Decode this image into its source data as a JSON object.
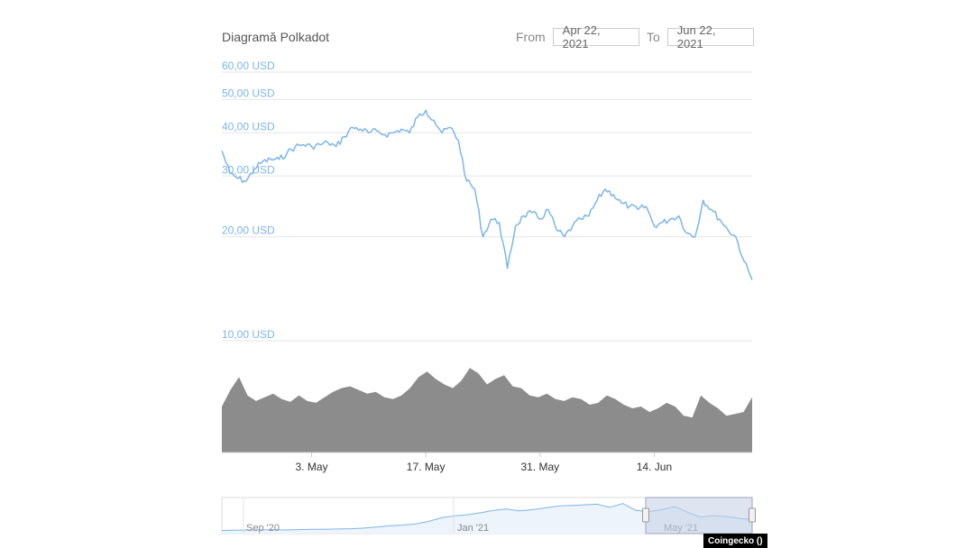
{
  "header": {
    "title": "Diagramă Polkadot",
    "from_label": "From",
    "from_value": "Apr 22, 2021",
    "to_label": "To",
    "to_value": "Jun 22, 2021"
  },
  "credit": "Coingecko ()",
  "colors": {
    "price_line": "#7cb5ec",
    "volume_fill": "#8c8c8c",
    "grid": "#e6e6e6",
    "navigator_mask": "#c3cfe6"
  },
  "chart_data": [
    {
      "type": "line",
      "title": "Diagramă Polkadot",
      "ylabel": "",
      "xlabel": "",
      "y_scale": "log",
      "ylim": [
        10,
        60
      ],
      "y_ticks": [
        10,
        20,
        30,
        40,
        50,
        60
      ],
      "y_tick_labels": [
        "10,00 USD",
        "20,00 USD",
        "30,00 USD",
        "40,00 USD",
        "50,00 USD",
        "60,00 USD"
      ],
      "x_tick_labels": [
        {
          "date": "2021-05-03",
          "label": "3. May"
        },
        {
          "date": "2021-05-17",
          "label": "17. May"
        },
        {
          "date": "2021-05-31",
          "label": "31. May"
        },
        {
          "date": "2021-06-14",
          "label": "14. Jun"
        }
      ],
      "xlim": [
        "2021-04-22",
        "2021-06-22"
      ],
      "grid": true,
      "series": [
        {
          "points": [
            [
              "2021-04-22",
              35.5
            ],
            [
              "2021-04-23",
              30.5
            ],
            [
              "2021-04-24",
              29.5
            ],
            [
              "2021-04-25",
              29.0
            ],
            [
              "2021-04-26",
              31.5
            ],
            [
              "2021-04-27",
              33.0
            ],
            [
              "2021-04-28",
              33.5
            ],
            [
              "2021-04-29",
              33.5
            ],
            [
              "2021-04-30",
              35.0
            ],
            [
              "2021-05-01",
              36.5
            ],
            [
              "2021-05-02",
              37.0
            ],
            [
              "2021-05-03",
              36.5
            ],
            [
              "2021-05-04",
              37.0
            ],
            [
              "2021-05-05",
              37.5
            ],
            [
              "2021-05-06",
              36.5
            ],
            [
              "2021-05-07",
              39.0
            ],
            [
              "2021-05-08",
              41.5
            ],
            [
              "2021-05-09",
              41.0
            ],
            [
              "2021-05-10",
              40.0
            ],
            [
              "2021-05-11",
              40.5
            ],
            [
              "2021-05-12",
              39.5
            ],
            [
              "2021-05-13",
              40.0
            ],
            [
              "2021-05-14",
              41.0
            ],
            [
              "2021-05-15",
              40.0
            ],
            [
              "2021-05-16",
              44.5
            ],
            [
              "2021-05-17",
              46.5
            ],
            [
              "2021-05-18",
              43.5
            ],
            [
              "2021-05-19",
              40.0
            ],
            [
              "2021-05-20",
              41.5
            ],
            [
              "2021-05-21",
              38.0
            ],
            [
              "2021-05-22",
              29.0
            ],
            [
              "2021-05-23",
              27.5
            ],
            [
              "2021-05-24",
              20.0
            ],
            [
              "2021-05-25",
              22.5
            ],
            [
              "2021-05-26",
              22.0
            ],
            [
              "2021-05-27",
              16.2
            ],
            [
              "2021-05-28",
              21.5
            ],
            [
              "2021-05-29",
              23.0
            ],
            [
              "2021-05-30",
              23.5
            ],
            [
              "2021-05-31",
              22.5
            ],
            [
              "2021-06-01",
              24.0
            ],
            [
              "2021-06-02",
              21.0
            ],
            [
              "2021-06-03",
              20.0
            ],
            [
              "2021-06-04",
              21.5
            ],
            [
              "2021-06-05",
              22.5
            ],
            [
              "2021-06-06",
              23.0
            ],
            [
              "2021-06-07",
              25.5
            ],
            [
              "2021-06-08",
              27.5
            ],
            [
              "2021-06-09",
              26.5
            ],
            [
              "2021-06-10",
              25.0
            ],
            [
              "2021-06-11",
              24.5
            ],
            [
              "2021-06-12",
              24.0
            ],
            [
              "2021-06-13",
              24.5
            ],
            [
              "2021-06-14",
              21.5
            ],
            [
              "2021-06-15",
              22.0
            ],
            [
              "2021-06-16",
              22.5
            ],
            [
              "2021-06-17",
              23.0
            ],
            [
              "2021-06-18",
              20.5
            ],
            [
              "2021-06-19",
              20.0
            ],
            [
              "2021-06-20",
              25.5
            ],
            [
              "2021-06-21",
              24.0
            ],
            [
              "2021-06-22",
              22.5
            ],
            [
              "2021-06-23",
              21.0
            ],
            [
              "2021-06-24",
              20.0
            ],
            [
              "2021-06-25",
              17.0
            ],
            [
              "2021-06-26",
              15.0
            ]
          ]
        }
      ]
    },
    {
      "type": "area",
      "title": "",
      "series": [
        {
          "values": [
            0.5,
            0.68,
            0.82,
            0.62,
            0.56,
            0.6,
            0.64,
            0.58,
            0.55,
            0.62,
            0.56,
            0.54,
            0.6,
            0.66,
            0.7,
            0.72,
            0.68,
            0.64,
            0.66,
            0.6,
            0.58,
            0.62,
            0.7,
            0.82,
            0.88,
            0.8,
            0.74,
            0.7,
            0.78,
            0.92,
            0.86,
            0.74,
            0.8,
            0.84,
            0.72,
            0.7,
            0.62,
            0.6,
            0.64,
            0.58,
            0.56,
            0.6,
            0.58,
            0.52,
            0.54,
            0.62,
            0.58,
            0.52,
            0.48,
            0.5,
            0.44,
            0.48,
            0.54,
            0.5,
            0.4,
            0.38,
            0.62,
            0.54,
            0.48,
            0.4,
            0.42,
            0.44,
            0.6
          ]
        }
      ]
    }
  ],
  "navigator": {
    "tick_labels": [
      "Sep '20",
      "Jan '21",
      "May '21"
    ],
    "selected_from": "Apr 22, 2021",
    "selected_to": "Jun 22, 2021",
    "series_values": [
      0.04,
      0.05,
      0.06,
      0.06,
      0.07,
      0.06,
      0.07,
      0.08,
      0.08,
      0.09,
      0.1,
      0.12,
      0.16,
      0.2,
      0.22,
      0.26,
      0.34,
      0.46,
      0.52,
      0.56,
      0.62,
      0.7,
      0.74,
      0.68,
      0.72,
      0.78,
      0.84,
      0.86,
      0.88,
      0.9,
      0.8,
      0.92,
      0.7,
      0.66,
      0.72,
      0.82,
      0.64,
      0.48,
      0.52,
      0.5,
      0.44,
      0.4
    ]
  }
}
